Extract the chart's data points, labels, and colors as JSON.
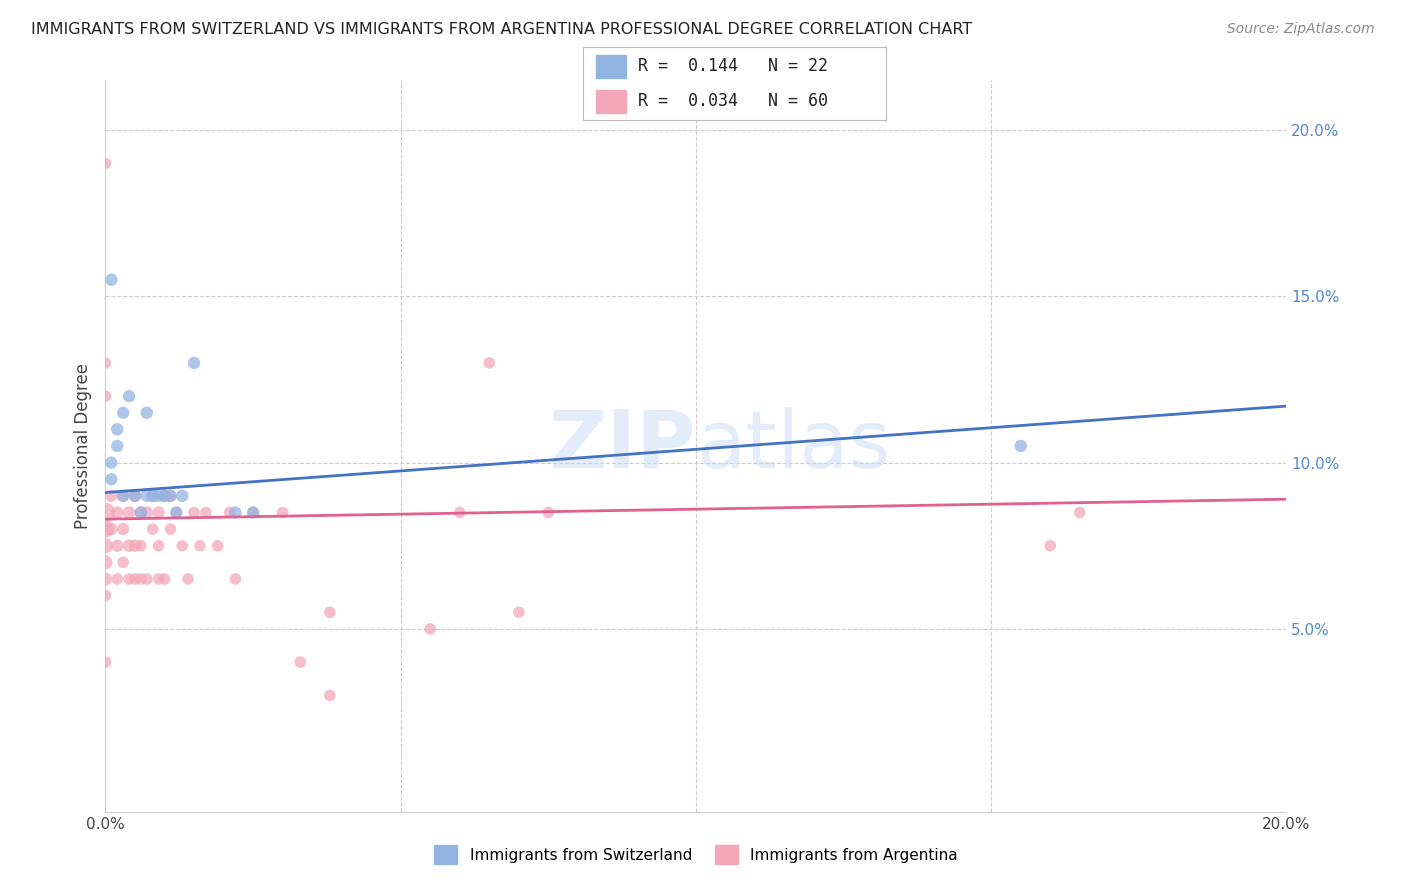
{
  "title": "IMMIGRANTS FROM SWITZERLAND VS IMMIGRANTS FROM ARGENTINA PROFESSIONAL DEGREE CORRELATION CHART",
  "source": "Source: ZipAtlas.com",
  "ylabel": "Professional Degree",
  "xlim": [
    0.0,
    0.2
  ],
  "ylim": [
    -0.005,
    0.215
  ],
  "blue_line_y0": 0.091,
  "blue_line_y1": 0.117,
  "pink_line_y0": 0.083,
  "pink_line_y1": 0.089,
  "watermark": "ZIPatlas",
  "blue_color": "#92b4e3",
  "pink_color": "#f4a7b9",
  "blue_line_color": "#4472C4",
  "pink_line_color": "#E06090",
  "blue_points_x": [
    0.001,
    0.001,
    0.002,
    0.002,
    0.003,
    0.003,
    0.004,
    0.005,
    0.006,
    0.007,
    0.007,
    0.008,
    0.009,
    0.01,
    0.011,
    0.012,
    0.013,
    0.015,
    0.022,
    0.025,
    0.155,
    0.001
  ],
  "blue_points_y": [
    0.095,
    0.1,
    0.105,
    0.11,
    0.09,
    0.115,
    0.12,
    0.09,
    0.085,
    0.115,
    0.09,
    0.09,
    0.09,
    0.09,
    0.09,
    0.085,
    0.09,
    0.13,
    0.085,
    0.085,
    0.105,
    0.155
  ],
  "blue_sizes": [
    80,
    80,
    80,
    80,
    80,
    80,
    80,
    80,
    80,
    80,
    80,
    80,
    80,
    80,
    80,
    80,
    80,
    80,
    80,
    80,
    80,
    80
  ],
  "pink_points_x": [
    0.0,
    0.0,
    0.0,
    0.0,
    0.0,
    0.001,
    0.001,
    0.002,
    0.002,
    0.002,
    0.003,
    0.003,
    0.003,
    0.004,
    0.004,
    0.004,
    0.005,
    0.005,
    0.005,
    0.006,
    0.006,
    0.006,
    0.007,
    0.007,
    0.008,
    0.008,
    0.009,
    0.009,
    0.009,
    0.01,
    0.01,
    0.011,
    0.011,
    0.012,
    0.013,
    0.014,
    0.015,
    0.016,
    0.017,
    0.019,
    0.021,
    0.022,
    0.025,
    0.03,
    0.033,
    0.038,
    0.038,
    0.055,
    0.06,
    0.065,
    0.07,
    0.075,
    0.16,
    0.165,
    0.0,
    0.0,
    0.0,
    0.0,
    0.0,
    0.0
  ],
  "pink_points_y": [
    0.085,
    0.08,
    0.075,
    0.07,
    0.065,
    0.09,
    0.08,
    0.085,
    0.075,
    0.065,
    0.09,
    0.08,
    0.07,
    0.085,
    0.075,
    0.065,
    0.09,
    0.075,
    0.065,
    0.085,
    0.075,
    0.065,
    0.085,
    0.065,
    0.09,
    0.08,
    0.085,
    0.075,
    0.065,
    0.09,
    0.065,
    0.09,
    0.08,
    0.085,
    0.075,
    0.065,
    0.085,
    0.075,
    0.085,
    0.075,
    0.085,
    0.065,
    0.085,
    0.085,
    0.04,
    0.055,
    0.03,
    0.05,
    0.085,
    0.13,
    0.055,
    0.085,
    0.075,
    0.085,
    0.19,
    0.13,
    0.12,
    0.08,
    0.06,
    0.04
  ],
  "pink_sizes": [
    200,
    150,
    120,
    100,
    90,
    80,
    80,
    80,
    80,
    70,
    80,
    80,
    70,
    80,
    80,
    70,
    80,
    80,
    70,
    80,
    70,
    70,
    80,
    70,
    80,
    70,
    80,
    70,
    70,
    80,
    70,
    80,
    70,
    70,
    70,
    70,
    70,
    70,
    70,
    70,
    70,
    70,
    70,
    70,
    70,
    70,
    70,
    70,
    70,
    70,
    70,
    70,
    70,
    70,
    70,
    70,
    70,
    70,
    70,
    70
  ]
}
